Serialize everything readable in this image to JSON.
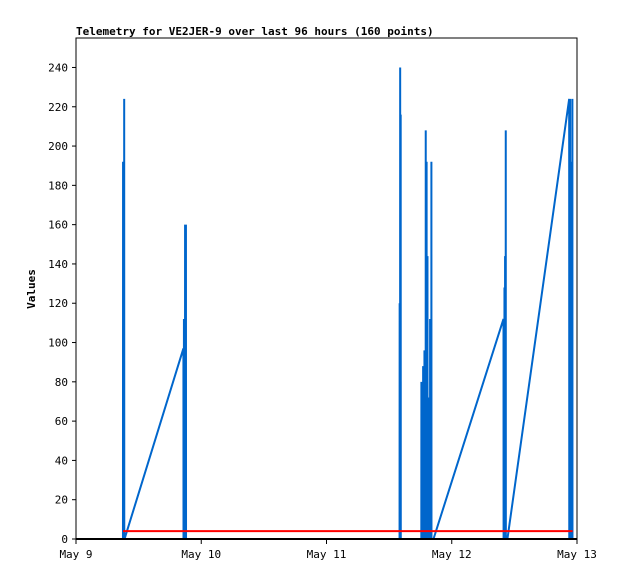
{
  "chart_data": {
    "type": "line",
    "title": "Telemetry for VE2JER-9 over last 96 hours (160 points)",
    "xlabel": "",
    "ylabel": "Values",
    "xlim": [
      "2024-05-09T00:00",
      "2024-05-13T00:00"
    ],
    "ylim": [
      0,
      255
    ],
    "x_ticks": [
      "May 9",
      "May 10",
      "May 11",
      "May 12",
      "May 13"
    ],
    "y_ticks": [
      0,
      20,
      40,
      60,
      80,
      100,
      120,
      140,
      160,
      180,
      200,
      220,
      240
    ],
    "grid": false,
    "series": [
      {
        "color": "#0066cc",
        "points": [
          [
            "2024-05-09T09:00",
            0
          ],
          [
            "2024-05-09T09:01",
            192
          ],
          [
            "2024-05-09T09:02",
            0
          ],
          [
            "2024-05-09T09:06",
            0
          ],
          [
            "2024-05-09T09:07",
            128
          ],
          [
            "2024-05-09T09:08",
            0
          ],
          [
            "2024-05-09T09:13",
            0
          ],
          [
            "2024-05-09T09:14",
            224
          ],
          [
            "2024-05-09T09:15",
            0
          ],
          [
            "2024-05-09T09:18",
            0
          ],
          [
            "2024-05-09T20:35",
            97
          ],
          [
            "2024-05-09T20:36",
            0
          ],
          [
            "2024-05-09T20:40",
            0
          ],
          [
            "2024-05-09T20:41",
            112
          ],
          [
            "2024-05-09T20:42",
            0
          ],
          [
            "2024-05-09T20:46",
            0
          ],
          [
            "2024-05-09T20:47",
            40
          ],
          [
            "2024-05-09T20:48",
            0
          ],
          [
            "2024-05-09T20:53",
            0
          ],
          [
            "2024-05-09T20:54",
            160
          ],
          [
            "2024-05-09T20:55",
            0
          ],
          [
            "2024-05-09T21:03",
            0
          ],
          [
            "2024-05-09T21:04",
            160
          ],
          [
            "2024-05-09T21:05",
            0
          ],
          [
            "2024-05-11T14:00",
            0
          ],
          [
            "2024-05-11T14:01",
            120
          ],
          [
            "2024-05-11T14:02",
            0
          ],
          [
            "2024-05-11T14:06",
            0
          ],
          [
            "2024-05-11T14:07",
            240
          ],
          [
            "2024-05-11T14:08",
            0
          ],
          [
            "2024-05-11T14:12",
            0
          ],
          [
            "2024-05-11T14:13",
            216
          ],
          [
            "2024-05-11T14:14",
            0
          ],
          [
            "2024-05-11T18:10",
            0
          ],
          [
            "2024-05-11T18:11",
            80
          ],
          [
            "2024-05-11T18:12",
            0
          ],
          [
            "2024-05-11T18:30",
            0
          ],
          [
            "2024-05-11T18:31",
            88
          ],
          [
            "2024-05-11T18:32",
            0
          ],
          [
            "2024-05-11T18:45",
            0
          ],
          [
            "2024-05-11T18:46",
            96
          ],
          [
            "2024-05-11T18:47",
            0
          ],
          [
            "2024-05-11T19:00",
            0
          ],
          [
            "2024-05-11T19:01",
            208
          ],
          [
            "2024-05-11T19:02",
            0
          ],
          [
            "2024-05-11T19:10",
            0
          ],
          [
            "2024-05-11T19:11",
            192
          ],
          [
            "2024-05-11T19:12",
            0
          ],
          [
            "2024-05-11T19:20",
            0
          ],
          [
            "2024-05-11T19:21",
            144
          ],
          [
            "2024-05-11T19:22",
            0
          ],
          [
            "2024-05-11T19:35",
            0
          ],
          [
            "2024-05-11T19:36",
            72
          ],
          [
            "2024-05-11T19:37",
            0
          ],
          [
            "2024-05-11T19:50",
            0
          ],
          [
            "2024-05-11T19:51",
            112
          ],
          [
            "2024-05-11T19:52",
            0
          ],
          [
            "2024-05-11T20:05",
            0
          ],
          [
            "2024-05-11T20:06",
            192
          ],
          [
            "2024-05-11T20:07",
            0
          ],
          [
            "2024-05-11T20:30",
            0
          ],
          [
            "2024-05-12T09:55",
            112
          ],
          [
            "2024-05-12T09:56",
            0
          ],
          [
            "2024-05-12T10:05",
            0
          ],
          [
            "2024-05-12T10:06",
            128
          ],
          [
            "2024-05-12T10:07",
            0
          ],
          [
            "2024-05-12T10:12",
            0
          ],
          [
            "2024-05-12T10:13",
            144
          ],
          [
            "2024-05-12T10:14",
            0
          ],
          [
            "2024-05-12T10:20",
            0
          ],
          [
            "2024-05-12T10:21",
            208
          ],
          [
            "2024-05-12T10:22",
            0
          ],
          [
            "2024-05-12T10:40",
            0
          ],
          [
            "2024-05-12T22:30",
            224
          ],
          [
            "2024-05-12T22:31",
            0
          ],
          [
            "2024-05-12T22:40",
            0
          ],
          [
            "2024-05-12T22:41",
            224
          ],
          [
            "2024-05-12T22:42",
            0
          ],
          [
            "2024-05-12T22:50",
            0
          ],
          [
            "2024-05-12T22:51",
            48
          ],
          [
            "2024-05-12T22:52",
            0
          ],
          [
            "2024-05-12T23:00",
            0
          ],
          [
            "2024-05-12T23:01",
            192
          ],
          [
            "2024-05-12T23:02",
            0
          ],
          [
            "2024-05-12T23:06",
            0
          ],
          [
            "2024-05-12T23:07",
            224
          ],
          [
            "2024-05-12T23:08",
            0
          ],
          [
            "2024-05-12T23:14",
            0
          ]
        ]
      },
      {
        "color": "#ff0000",
        "points": [
          [
            "2024-05-09T09:00",
            4
          ],
          [
            "2024-05-12T23:10",
            4
          ]
        ]
      },
      {
        "color": "#000000",
        "points": [
          [
            "2024-05-09T00:00",
            0
          ],
          [
            "2024-05-13T00:00",
            0
          ]
        ]
      }
    ]
  }
}
